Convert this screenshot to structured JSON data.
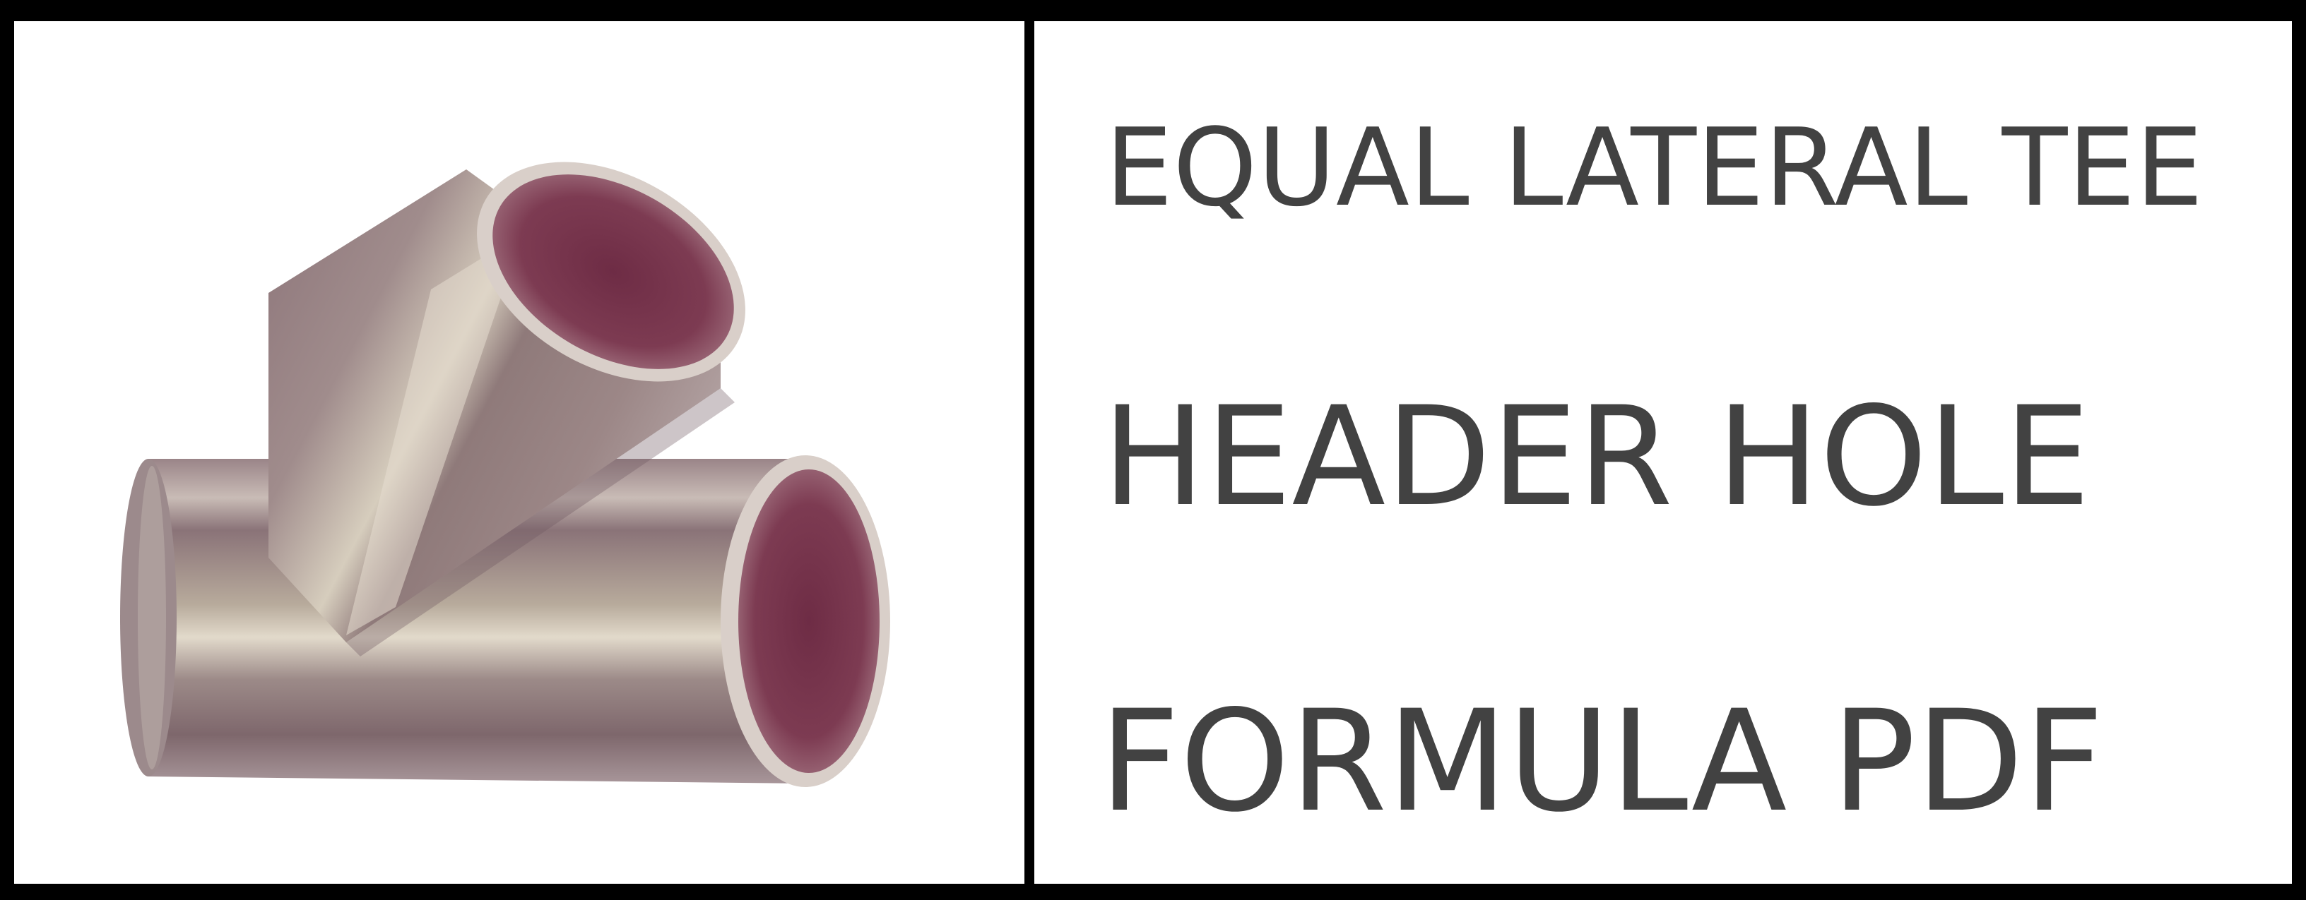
{
  "title": {
    "line1": "EQUAL LATERAL TEE",
    "line2": "HEADER HOLE",
    "line3": "FORMULA PDF"
  },
  "image": {
    "subject": "lateral-tee-pipe-fitting",
    "colors": {
      "pipe_body": "#8a7378",
      "pipe_highlight": "#d8d0c6",
      "pipe_interior": "#7a3a50",
      "background": "#ffffff",
      "text": "#424242",
      "frame": "#000000"
    }
  }
}
